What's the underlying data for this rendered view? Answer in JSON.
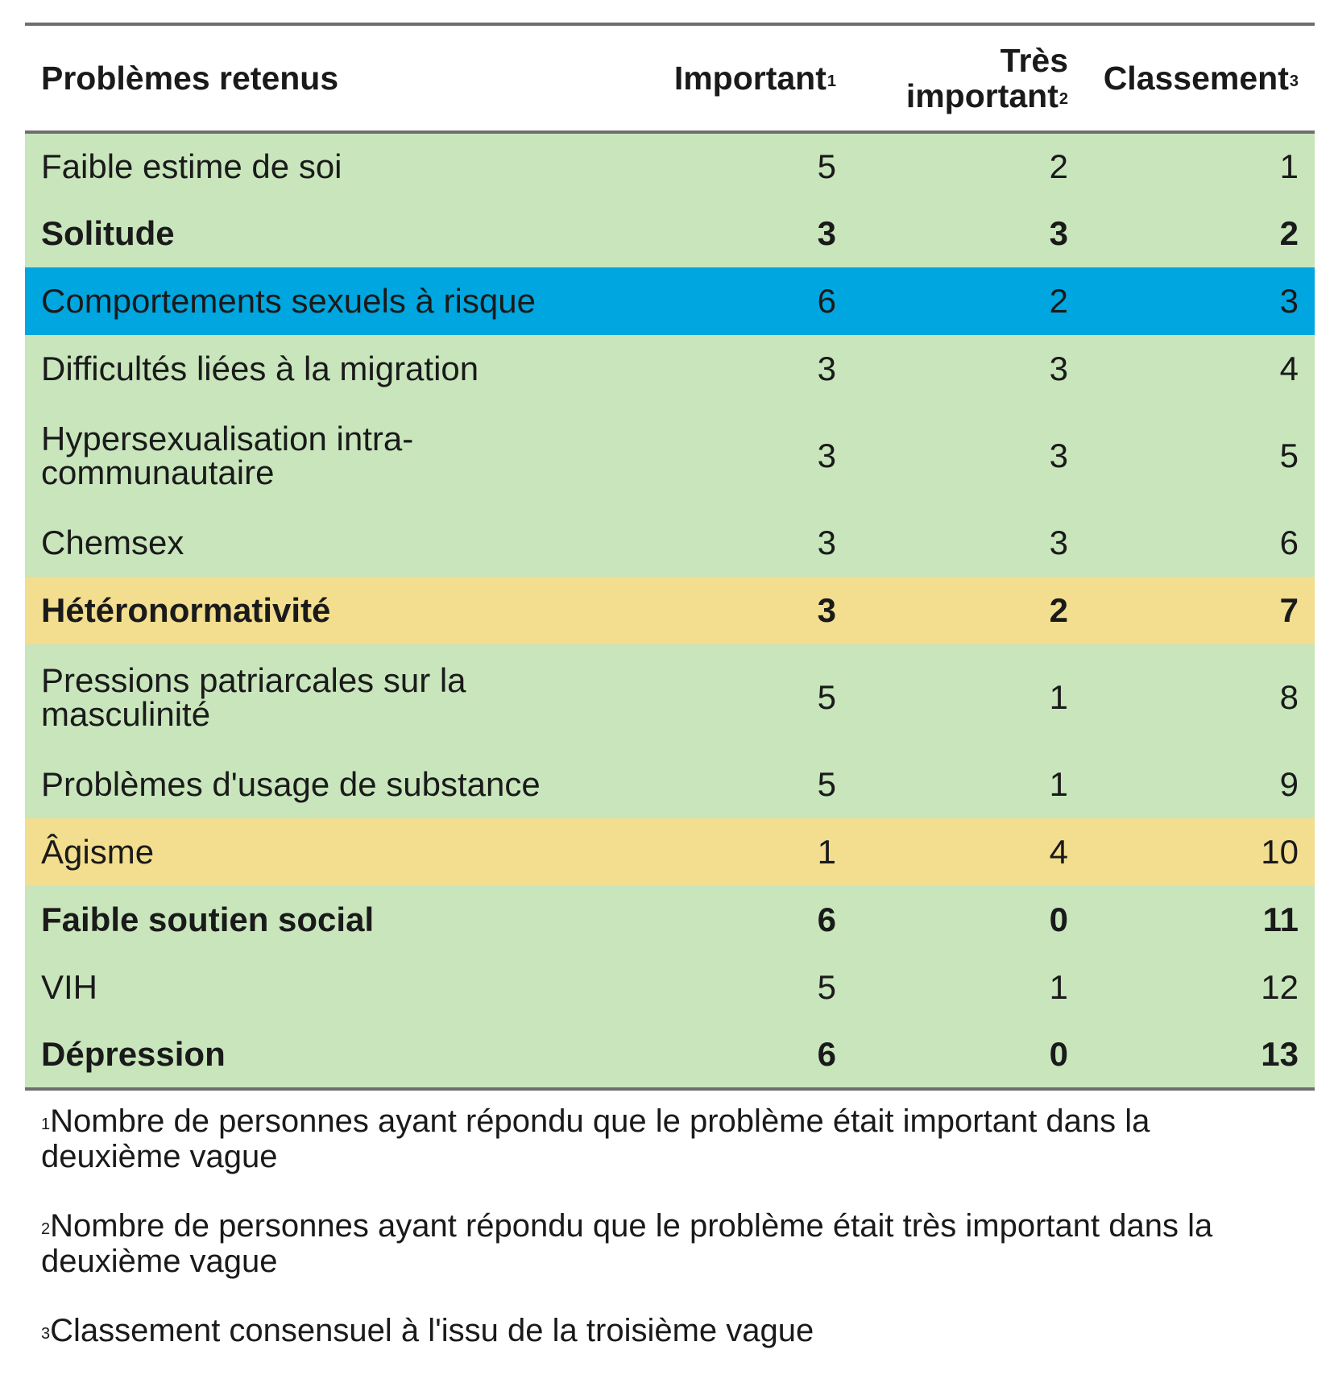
{
  "colors": {
    "rule": "#6e6e6e",
    "row_green": "#c8e5bc",
    "row_blue": "#00a6df",
    "row_yellow": "#f2de8e"
  },
  "table": {
    "headers": {
      "col0": "Problèmes retenus",
      "col1": "Important",
      "col1_sup": "1",
      "col2_line1": "Très",
      "col2_line2": "important",
      "col2_sup": "2",
      "col3": "Classement",
      "col3_sup": "3"
    },
    "rows": [
      {
        "label": "Faible estime de soi",
        "important": "5",
        "tres_important": "2",
        "classement": "1",
        "bold": false,
        "color": "#c8e5bc"
      },
      {
        "label": "Solitude",
        "important": "3",
        "tres_important": "3",
        "classement": "2",
        "bold": true,
        "color": "#c8e5bc"
      },
      {
        "label": "Comportements sexuels à risque",
        "important": "6",
        "tres_important": "2",
        "classement": "3",
        "bold": false,
        "color": "#00a6df"
      },
      {
        "label": "Difficultés liées à la migration",
        "important": "3",
        "tres_important": "3",
        "classement": "4",
        "bold": false,
        "color": "#c8e5bc"
      },
      {
        "label": "Hypersexualisation intra-communautaire",
        "important": "3",
        "tres_important": "3",
        "classement": "5",
        "bold": false,
        "color": "#c8e5bc"
      },
      {
        "label": "Chemsex",
        "important": "3",
        "tres_important": "3",
        "classement": "6",
        "bold": false,
        "color": "#c8e5bc"
      },
      {
        "label": "Hétéronormativité",
        "important": "3",
        "tres_important": "2",
        "classement": "7",
        "bold": true,
        "color": "#f2de8e"
      },
      {
        "label": "Pressions patriarcales sur la masculinité",
        "important": "5",
        "tres_important": "1",
        "classement": "8",
        "bold": false,
        "color": "#c8e5bc"
      },
      {
        "label": "Problèmes d'usage de substance",
        "important": "5",
        "tres_important": "1",
        "classement": "9",
        "bold": false,
        "color": "#c8e5bc"
      },
      {
        "label": "Âgisme",
        "important": "1",
        "tres_important": "4",
        "classement": "10",
        "bold": false,
        "color": "#f2de8e"
      },
      {
        "label": "Faible soutien social",
        "important": "6",
        "tres_important": "0",
        "classement": "11",
        "bold": true,
        "color": "#c8e5bc"
      },
      {
        "label": "VIH",
        "important": "5",
        "tres_important": "1",
        "classement": "12",
        "bold": false,
        "color": "#c8e5bc"
      },
      {
        "label": "Dépression",
        "important": "6",
        "tres_important": "0",
        "classement": "13",
        "bold": true,
        "color": "#c8e5bc"
      }
    ]
  },
  "footnotes": [
    {
      "sup": "1",
      "text": "Nombre de personnes ayant répondu que le problème était important dans la deuxième vague"
    },
    {
      "sup": "2",
      "text": "Nombre de personnes ayant répondu que le problème était très important dans la deuxième vague"
    },
    {
      "sup": "3",
      "text": "Classement consensuel à l'issu de la troisième vague"
    }
  ]
}
